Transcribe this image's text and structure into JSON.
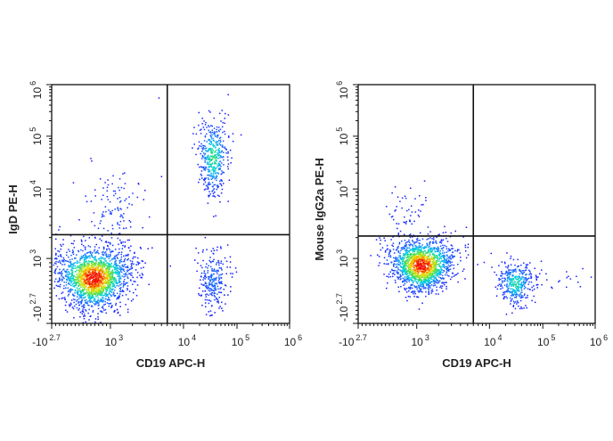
{
  "chart_data": [
    {
      "type": "scatter",
      "subtype": "flow-cytometry-density-dot-plot",
      "xlabel": "CD19 APC-H",
      "ylabel": "IgD PE-H",
      "x_scale": "biexponential",
      "y_scale": "biexponential",
      "xlim": [
        -501,
        1000000
      ],
      "ylim": [
        -501,
        1000000
      ],
      "x_ticks": [
        {
          "base": "-10",
          "exp": "2.7"
        },
        {
          "base": "10",
          "exp": "3"
        },
        {
          "base": "10",
          "exp": "4"
        },
        {
          "base": "10",
          "exp": "5"
        },
        {
          "base": "10",
          "exp": "6"
        }
      ],
      "y_ticks": [
        {
          "base": "-10",
          "exp": "2.7"
        },
        {
          "base": "10",
          "exp": "3"
        },
        {
          "base": "10",
          "exp": "4"
        },
        {
          "base": "10",
          "exp": "5"
        },
        {
          "base": "10",
          "exp": "6"
        }
      ],
      "quadrant_gate": {
        "x": 6000,
        "y": 2200
      },
      "populations": [
        {
          "name_hint": "CD19- IgD-",
          "center": [
            560,
            550
          ],
          "events": 1900,
          "peak_density": 1.0
        },
        {
          "name_hint": "CD19+ IgD+",
          "center": [
            35000,
            40000
          ],
          "events": 450,
          "peak_density": 0.6
        },
        {
          "name_hint": "CD19+ IgD-",
          "center": [
            35000,
            500
          ],
          "events": 260,
          "peak_density": 0.3
        },
        {
          "name_hint": "CD19- IgD+",
          "center": [
            1100,
            5000
          ],
          "events": 130,
          "peak_density": 0.15
        }
      ],
      "grid": false,
      "legend": "none"
    },
    {
      "type": "scatter",
      "subtype": "flow-cytometry-density-dot-plot",
      "xlabel": "CD19 APC-H",
      "ylabel": "Mouse IgG2a PE-H",
      "x_scale": "biexponential",
      "y_scale": "biexponential",
      "xlim": [
        -501,
        1000000
      ],
      "ylim": [
        -501,
        1000000
      ],
      "x_ticks": [
        {
          "base": "-10",
          "exp": "2.7"
        },
        {
          "base": "10",
          "exp": "3"
        },
        {
          "base": "10",
          "exp": "4"
        },
        {
          "base": "10",
          "exp": "5"
        },
        {
          "base": "10",
          "exp": "6"
        }
      ],
      "y_ticks": [
        {
          "base": "-10",
          "exp": "2.7"
        },
        {
          "base": "10",
          "exp": "3"
        },
        {
          "base": "10",
          "exp": "4"
        },
        {
          "base": "10",
          "exp": "5"
        },
        {
          "base": "10",
          "exp": "6"
        }
      ],
      "quadrant_gate": {
        "x": 6000,
        "y": 2100
      },
      "populations": [
        {
          "name_hint": "CD19- isotype",
          "center": [
            1150,
            850
          ],
          "events": 1600,
          "peak_density": 1.0
        },
        {
          "name_hint": "CD19+ isotype",
          "center": [
            30000,
            430
          ],
          "events": 380,
          "peak_density": 0.55
        },
        {
          "name_hint": "CD19- sparse",
          "center": [
            700,
            5000
          ],
          "events": 45,
          "peak_density": 0.1
        },
        {
          "name_hint": "CD19+ sparse",
          "center": [
            200000,
            500
          ],
          "events": 25,
          "peak_density": 0.05
        }
      ],
      "grid": false,
      "legend": "none"
    }
  ]
}
